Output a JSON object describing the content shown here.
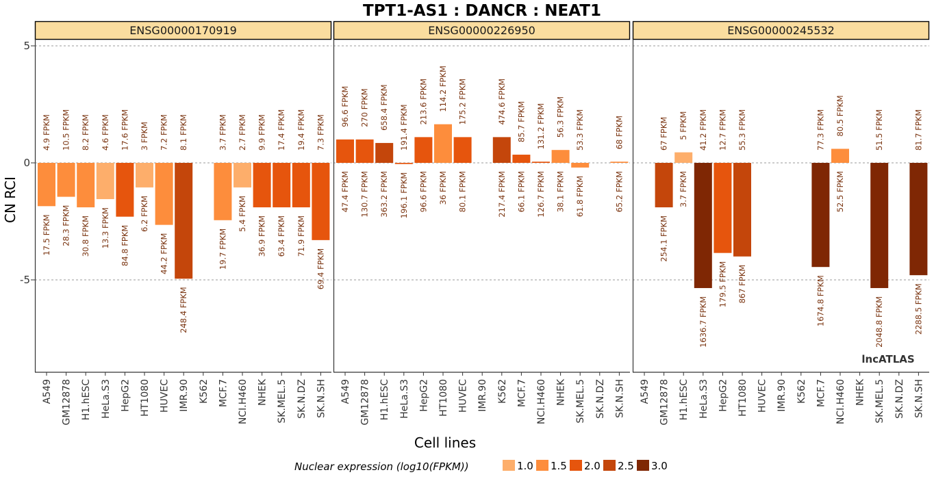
{
  "chart_data": {
    "type": "bar",
    "title": "TPT1-AS1 : DANCR : NEAT1",
    "xlabel": "Cell lines",
    "ylabel": "CN RCI",
    "ylim": [
      -9,
      5
    ],
    "y_ticks": [
      5,
      0,
      -5
    ],
    "grid_lines": [
      5,
      0,
      -5
    ],
    "categories": [
      "A549",
      "GM12878",
      "H1.hESC",
      "HeLa.S3",
      "HepG2",
      "HT1080",
      "HUVEC",
      "IMR.90",
      "K562",
      "MCF.7",
      "NCI.H460",
      "NHEK",
      "SK.MEL.5",
      "SK.N.DZ",
      "SK.N.SH"
    ],
    "legend": {
      "title": "Nuclear expression (log10(FPKM))",
      "placement": "bottom",
      "levels": [
        {
          "label": "1.0",
          "color": "#FDAE6B"
        },
        {
          "label": "1.5",
          "color": "#FD8D3C"
        },
        {
          "label": "2.0",
          "color": "#E6550D"
        },
        {
          "label": "2.5",
          "color": "#C4460B"
        },
        {
          "label": "3.0",
          "color": "#7F2704"
        }
      ]
    },
    "panels": [
      {
        "gene": "ENSG00000170919",
        "values": [
          -1.85,
          -1.45,
          -1.9,
          -1.55,
          -2.3,
          -1.05,
          -2.65,
          -4.95,
          null,
          -2.45,
          -1.05,
          -1.9,
          -1.9,
          -1.9,
          -3.3
        ],
        "color_level": [
          1,
          1,
          1,
          0,
          2,
          0,
          1,
          3,
          null,
          1,
          0,
          2,
          2,
          2,
          2
        ],
        "top_labels": [
          "4.9 FPKM",
          "10.5 FPKM",
          "8.2 FPKM",
          "4.6 FPKM",
          "17.6 FPKM",
          "3 FPKM",
          "7.2 FPKM",
          "8.1 FPKM",
          "",
          "3.7 FPKM",
          "2.7 FPKM",
          "9.9 FPKM",
          "17.4 FPKM",
          "19.4 FPKM",
          "7.3 FPKM"
        ],
        "bottom_labels": [
          "17.5 FPKM",
          "28.3 FPKM",
          "30.8 FPKM",
          "13.3 FPKM",
          "84.8 FPKM",
          "6.2 FPKM",
          "44.2 FPKM",
          "248.4 FPKM",
          "",
          "19.7 FPKM",
          "5.4 FPKM",
          "36.9 FPKM",
          "63.4 FPKM",
          "71.9 FPKM",
          "69.4 FPKM"
        ]
      },
      {
        "gene": "ENSG00000226950",
        "values": [
          1.0,
          1.0,
          0.85,
          -0.05,
          1.1,
          1.65,
          1.1,
          null,
          1.1,
          0.35,
          0.05,
          0.55,
          -0.2,
          null,
          0.05
        ],
        "color_level": [
          2,
          2,
          3,
          2,
          2,
          1,
          2,
          null,
          3,
          2,
          2,
          1,
          1,
          null,
          1
        ],
        "top_labels": [
          "96.6 FPKM",
          "270 FPKM",
          "658.4 FPKM",
          "191.4 FPKM",
          "213.6 FPKM",
          "114.2 FPKM",
          "175.2 FPKM",
          "",
          "474.6 FPKM",
          "85.7 FPKM",
          "131.2 FPKM",
          "56.3 FPKM",
          "53.3 FPKM",
          "",
          "68 FPKM"
        ],
        "bottom_labels": [
          "47.4 FPKM",
          "130.7 FPKM",
          "363.2 FPKM",
          "196.1 FPKM",
          "96.6 FPKM",
          "36 FPKM",
          "80.1 FPKM",
          "",
          "217.4 FPKM",
          "66.1 FPKM",
          "126.7 FPKM",
          "38.1 FPKM",
          "61.8 FPKM",
          "",
          "65.2 FPKM"
        ]
      },
      {
        "gene": "ENSG00000245532",
        "values": [
          null,
          -1.9,
          0.45,
          -5.35,
          -3.85,
          -4.0,
          null,
          null,
          null,
          -4.45,
          0.6,
          null,
          -5.35,
          null,
          -4.8
        ],
        "color_level": [
          null,
          3,
          0,
          4,
          2,
          3,
          null,
          null,
          null,
          4,
          1,
          null,
          4,
          null,
          4
        ],
        "top_labels": [
          "",
          "67 FPKM",
          "5 FPKM",
          "41.2 FPKM",
          "12.7 FPKM",
          "55.3 FPKM",
          "",
          "",
          "",
          "77.3 FPKM",
          "80.5 FPKM",
          "",
          "51.5 FPKM",
          "",
          "81.7 FPKM"
        ],
        "bottom_labels": [
          "",
          "254.1 FPKM",
          "3.7 FPKM",
          "1636.7 FPKM",
          "179.5 FPKM",
          "867 FPKM",
          "",
          "",
          "",
          "1674.8 FPKM",
          "52.5 FPKM",
          "",
          "2048.8 FPKM",
          "",
          "2288.5 FPKM"
        ]
      }
    ],
    "watermark": "lncATLAS",
    "colors": {
      "strip_fill": "#FADD9F",
      "strip_border": "#000000",
      "grid": "#999999"
    }
  }
}
